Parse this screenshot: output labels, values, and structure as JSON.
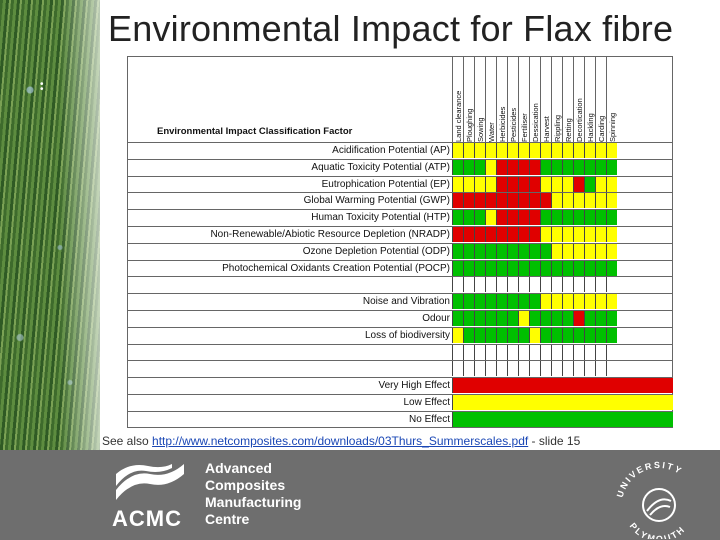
{
  "title": "Environmental Impact for Flax fibre",
  "table": {
    "factor_header": "Environmental Impact Classification Factor",
    "columns": [
      "Land clearance",
      "Ploughing",
      "Sowing",
      "Water",
      "Herbicides",
      "Pesticides",
      "Fertiliser",
      "Dessication",
      "Harvest",
      "Rippling",
      "Retting",
      "Decortication",
      "Hackling",
      "Carding",
      "Spinning"
    ],
    "rows": [
      {
        "label": "Acidification Potential (AP)",
        "cells": "yyyyyyyyyyyyyyy"
      },
      {
        "label": "Aquatic Toxicity Potential (ATP)",
        "cells": "gggyrrrrggggggg"
      },
      {
        "label": "Eutrophication Potential (EP)",
        "cells": "yyyyrrrryyyrgyy"
      },
      {
        "label": "Global Warming Potential (GWP)",
        "cells": "rrrrrrrrryyyyyy"
      },
      {
        "label": "Human Toxicity Potential (HTP)",
        "cells": "gggyrrrrggggggg"
      },
      {
        "label": "Non-Renewable/Abiotic Resource Depletion (NRADP)",
        "cells": "rrrrrrrryyyyyyy"
      },
      {
        "label": "Ozone Depletion Potential (ODP)",
        "cells": "gggggggggyyyyyy"
      },
      {
        "label": "Photochemical Oxidants Creation Potential (POCP)",
        "cells": "ggggggggggggggg"
      },
      {
        "label": "",
        "cells": ""
      },
      {
        "label": "Noise and Vibration",
        "cells": "ggggggggyyyyyyy"
      },
      {
        "label": "Odour",
        "cells": "ggggggyggggrggg"
      },
      {
        "label": "Loss of biodiversity",
        "cells": "yggggggyggggggg"
      },
      {
        "label": "",
        "cells": ""
      },
      {
        "label": "",
        "cells": ""
      }
    ],
    "key": [
      {
        "label": "Very High Effect",
        "color": "#e00000"
      },
      {
        "label": "Low Effect",
        "color": "#ffff00"
      },
      {
        "label": "No Effect",
        "color": "#00c000"
      }
    ]
  },
  "see_also": {
    "prefix": "See also ",
    "link": "http://www.netcomposites.com/downloads/03Thurs_Summerscales.pdf",
    "suffix": " - slide 15"
  },
  "footer": {
    "logo_text": "ACMC",
    "centre_lines": [
      "Advanced",
      "Composites",
      "Manufacturing",
      "Centre"
    ],
    "crest_text": "UNIVERSITY OF PLYMOUTH"
  }
}
